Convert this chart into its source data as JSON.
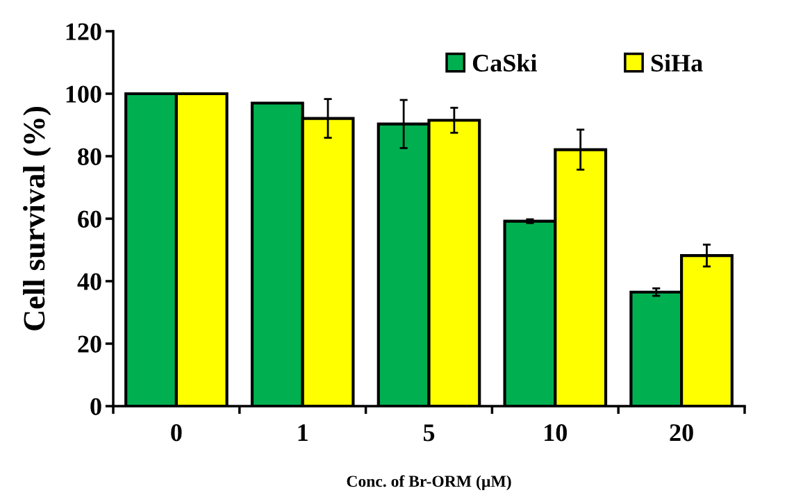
{
  "chart_data": {
    "type": "bar",
    "xlabel": "Conc. of Br-ORM (µM)",
    "ylabel": "Cell survival (%)",
    "categories": [
      "0",
      "1",
      "5",
      "10",
      "20"
    ],
    "series": [
      {
        "name": "CaSki",
        "color": "#00b050",
        "values": [
          100,
          97,
          90.3,
          59.2,
          36.5
        ],
        "errors": [
          null,
          null,
          7.7,
          0.6,
          1.2
        ]
      },
      {
        "name": "SiHa",
        "color": "#ffff00",
        "values": [
          100,
          92.1,
          91.5,
          82.1,
          48.2
        ],
        "errors": [
          null,
          6.2,
          4,
          6.4,
          3.5
        ]
      }
    ],
    "ylim": [
      0,
      120
    ],
    "yticks": [
      0,
      20,
      40,
      60,
      80,
      100,
      120
    ],
    "grid": false,
    "legend": "top right"
  }
}
